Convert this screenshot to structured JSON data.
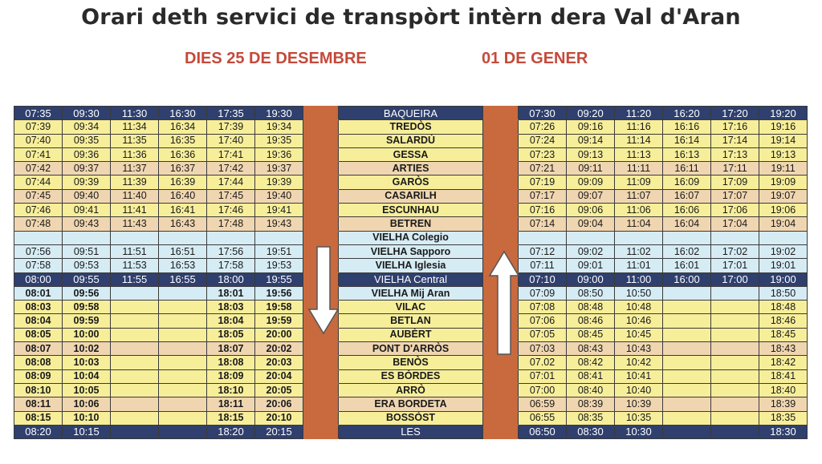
{
  "title": "Orari deth servici de transpòrt intèrn dera Val d'Aran",
  "subtitle_left": "DIES 25 DE DESEMBRE",
  "subtitle_right": "01 DE GENER",
  "rows": [
    {
      "style": "r-dark",
      "left": [
        "07:35",
        "09:30",
        "11:30",
        "16:30",
        "17:35",
        "19:30"
      ],
      "stop": "BAQUEIRA",
      "right": [
        "07:30",
        "09:20",
        "11:20",
        "16:20",
        "17:20",
        "19:20"
      ]
    },
    {
      "style": "r-yel",
      "left": [
        "07:39",
        "09:34",
        "11:34",
        "16:34",
        "17:39",
        "19:34"
      ],
      "stop": "TREDÒS",
      "right": [
        "07:26",
        "09:16",
        "11:16",
        "16:16",
        "17:16",
        "19:16"
      ]
    },
    {
      "style": "r-yel",
      "left": [
        "07:40",
        "09:35",
        "11:35",
        "16:35",
        "17:40",
        "19:35"
      ],
      "stop": "SALARDÚ",
      "right": [
        "07:24",
        "09:14",
        "11:14",
        "16:14",
        "17:14",
        "19:14"
      ]
    },
    {
      "style": "r-yel",
      "left": [
        "07:41",
        "09:36",
        "11:36",
        "16:36",
        "17:41",
        "19:36"
      ],
      "stop": "GESSA",
      "right": [
        "07:23",
        "09:13",
        "11:13",
        "16:13",
        "17:13",
        "19:13"
      ]
    },
    {
      "style": "r-sal",
      "left": [
        "07:42",
        "09:37",
        "11:37",
        "16:37",
        "17:42",
        "19:37"
      ],
      "stop": "ARTIES",
      "right": [
        "07:21",
        "09:11",
        "11:11",
        "16:11",
        "17:11",
        "19:11"
      ]
    },
    {
      "style": "r-yel",
      "left": [
        "07:44",
        "09:39",
        "11:39",
        "16:39",
        "17:44",
        "19:39"
      ],
      "stop": "GARÒS",
      "right": [
        "07:19",
        "09:09",
        "11:09",
        "16:09",
        "17:09",
        "19:09"
      ]
    },
    {
      "style": "r-sal",
      "left": [
        "07:45",
        "09:40",
        "11:40",
        "16:40",
        "17:45",
        "19:40"
      ],
      "stop": "CASARILH",
      "right": [
        "07:17",
        "09:07",
        "11:07",
        "16:07",
        "17:07",
        "19:07"
      ]
    },
    {
      "style": "r-yel",
      "left": [
        "07:46",
        "09:41",
        "11:41",
        "16:41",
        "17:46",
        "19:41"
      ],
      "stop": "ESCUNHAU",
      "right": [
        "07:16",
        "09:06",
        "11:06",
        "16:06",
        "17:06",
        "19:06"
      ]
    },
    {
      "style": "r-sal",
      "left": [
        "07:48",
        "09:43",
        "11:43",
        "16:43",
        "17:48",
        "19:43"
      ],
      "stop": "BETREN",
      "right": [
        "07:14",
        "09:04",
        "11:04",
        "16:04",
        "17:04",
        "19:04"
      ]
    },
    {
      "style": "r-blu",
      "left": [
        "",
        "",
        "",
        "",
        "",
        ""
      ],
      "stop": "VIELHA Colegio",
      "right": [
        "",
        "",
        "",
        "",
        "",
        ""
      ]
    },
    {
      "style": "r-blu",
      "left": [
        "07:56",
        "09:51",
        "11:51",
        "16:51",
        "17:56",
        "19:51"
      ],
      "stop": "VIELHA Sapporo",
      "right": [
        "07:12",
        "09:02",
        "11:02",
        "16:02",
        "17:02",
        "19:02"
      ]
    },
    {
      "style": "r-blu",
      "left": [
        "07:58",
        "09:53",
        "11:53",
        "16:53",
        "17:58",
        "19:53"
      ],
      "stop": "VIELHA Iglesia",
      "right": [
        "07:11",
        "09:01",
        "11:01",
        "16:01",
        "17:01",
        "19:01"
      ]
    },
    {
      "style": "r-dark",
      "left": [
        "08:00",
        "09:55",
        "11:55",
        "16:55",
        "18:00",
        "19:55"
      ],
      "stop": "VIELHA Central",
      "right": [
        "07:10",
        "09:00",
        "11:00",
        "16:00",
        "17:00",
        "19:00"
      ]
    },
    {
      "style": "r-blu",
      "left": [
        "08:01",
        "09:56",
        "",
        "",
        "18:01",
        "19:56"
      ],
      "stop": "VIELHA Mij Aran",
      "right": [
        "07:09",
        "08:50",
        "10:50",
        "",
        "",
        "18:50"
      ],
      "bold": true
    },
    {
      "style": "r-yel",
      "left": [
        "08:03",
        "09:58",
        "",
        "",
        "18:03",
        "19:58"
      ],
      "stop": "VILAC",
      "right": [
        "07:08",
        "08:48",
        "10:48",
        "",
        "",
        "18:48"
      ],
      "bold": true
    },
    {
      "style": "r-yel",
      "left": [
        "08:04",
        "09:59",
        "",
        "",
        "18:04",
        "19:59"
      ],
      "stop": "BETLAN",
      "right": [
        "07:06",
        "08:46",
        "10:46",
        "",
        "",
        "18:46"
      ],
      "bold": true
    },
    {
      "style": "r-yel",
      "left": [
        "08:05",
        "10:00",
        "",
        "",
        "18:05",
        "20:00"
      ],
      "stop": "AUBÈRT",
      "right": [
        "07:05",
        "08:45",
        "10:45",
        "",
        "",
        "18:45"
      ],
      "bold": true
    },
    {
      "style": "r-sal",
      "left": [
        "08:07",
        "10:02",
        "",
        "",
        "18:07",
        "20:02"
      ],
      "stop": "PONT D'ARRÒS",
      "right": [
        "07:03",
        "08:43",
        "10:43",
        "",
        "",
        "18:43"
      ],
      "bold": true
    },
    {
      "style": "r-yel",
      "left": [
        "08:08",
        "10:03",
        "",
        "",
        "18:08",
        "20:03"
      ],
      "stop": "BENÒS",
      "right": [
        "07.02",
        "08:42",
        "10:42",
        "",
        "",
        "18:42"
      ],
      "bold": true
    },
    {
      "style": "r-yel",
      "left": [
        "08:09",
        "10:04",
        "",
        "",
        "18:09",
        "20:04"
      ],
      "stop": "ES BÒRDES",
      "right": [
        "07:01",
        "08:41",
        "10:41",
        "",
        "",
        "18:41"
      ],
      "bold": true
    },
    {
      "style": "r-yel",
      "left": [
        "08:10",
        "10:05",
        "",
        "",
        "18:10",
        "20:05"
      ],
      "stop": "ARRÒ",
      "right": [
        "07:00",
        "08:40",
        "10:40",
        "",
        "",
        "18:40"
      ],
      "bold": true
    },
    {
      "style": "r-sal",
      "left": [
        "08:11",
        "10:06",
        "",
        "",
        "18:11",
        "20:06"
      ],
      "stop": "ERA BORDETA",
      "right": [
        "06:59",
        "08:39",
        "10:39",
        "",
        "",
        "18:39"
      ],
      "bold": true
    },
    {
      "style": "r-yel",
      "left": [
        "08:15",
        "10:10",
        "",
        "",
        "18:15",
        "20:10"
      ],
      "stop": "BOSSÒST",
      "right": [
        "06:55",
        "08:35",
        "10:35",
        "",
        "",
        "18:35"
      ],
      "bold": true
    },
    {
      "style": "r-dark",
      "left": [
        "08:20",
        "10:15",
        "",
        "",
        "18:20",
        "20:15"
      ],
      "stop": "LES",
      "right": [
        "06:50",
        "08:30",
        "10:30",
        "",
        "",
        "18:30"
      ]
    }
  ],
  "colors": {
    "dark": "#2f3f6e",
    "yellow": "#f7ee9a",
    "salmon": "#f0d6b0",
    "blue": "#d6ecf5",
    "gap": "#c86a3e",
    "subtitle": "#c44a3a"
  },
  "icons": {
    "down": "down-arrow-icon",
    "up": "up-arrow-icon"
  }
}
